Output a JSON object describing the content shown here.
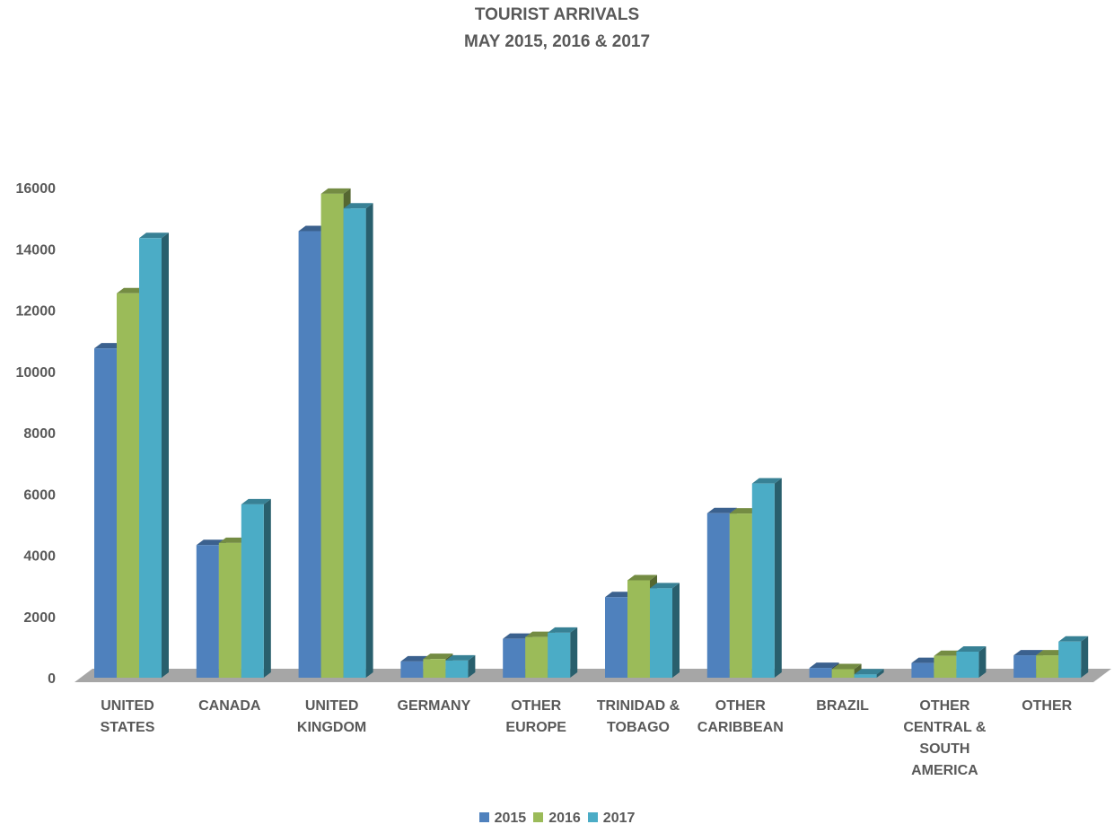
{
  "chart_data": {
    "type": "bar",
    "title": "TOURIST ARRIVALS",
    "subtitle": "MAY 2015, 2016 & 2017",
    "categories": [
      [
        "UNITED",
        "STATES"
      ],
      [
        "CANADA"
      ],
      [
        "UNITED",
        "KINGDOM"
      ],
      [
        "GERMANY"
      ],
      [
        "OTHER",
        "EUROPE"
      ],
      [
        "TRINIDAD &",
        "TOBAGO"
      ],
      [
        "OTHER",
        "CARIBBEAN"
      ],
      [
        "BRAZIL"
      ],
      [
        "OTHER",
        "CENTRAL &",
        "SOUTH",
        "AMERICA"
      ],
      [
        "OTHER"
      ]
    ],
    "series": [
      {
        "name": "2015",
        "color": "#4F81BD",
        "values": [
          10750,
          4330,
          14580,
          530,
          1270,
          2630,
          5370,
          320,
          480,
          730
        ]
      },
      {
        "name": "2016",
        "color": "#9BBB59",
        "values": [
          12550,
          4400,
          15800,
          610,
          1330,
          3180,
          5360,
          280,
          710,
          730
        ]
      },
      {
        "name": "2017",
        "color": "#4BACC6",
        "values": [
          14350,
          5660,
          15320,
          560,
          1470,
          2920,
          6340,
          110,
          850,
          1180
        ]
      }
    ],
    "ylim": [
      0,
      16000
    ],
    "yticks": [
      0,
      2000,
      4000,
      6000,
      8000,
      10000,
      12000,
      14000,
      16000
    ],
    "grid": false,
    "legend_position": "bottom",
    "style": "3d-clustered-column"
  }
}
